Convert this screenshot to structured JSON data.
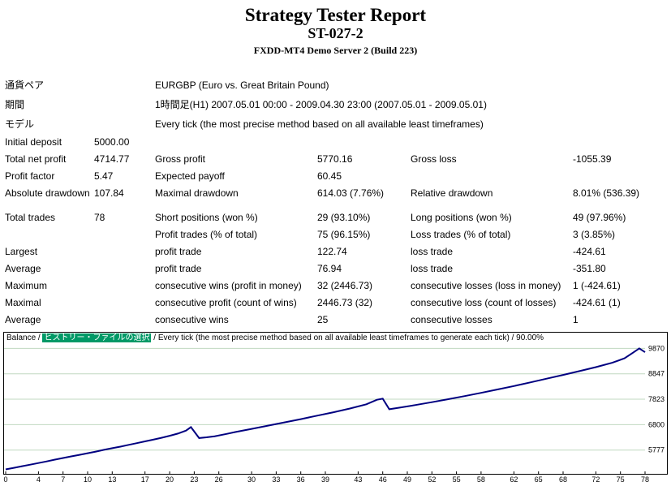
{
  "header": {
    "title": "Strategy Tester Report",
    "subtitle": "ST-027-2",
    "server": "FXDD-MT4 Demo Server 2 (Build 223)"
  },
  "table": {
    "rows": [
      [
        {
          "k": "label",
          "t": "通貨ペア"
        },
        {
          "k": "empty",
          "t": ""
        },
        {
          "k": "wide",
          "s": 4,
          "t": "EURGBP (Euro vs. Great Britain Pound)"
        }
      ],
      [
        {
          "k": "label",
          "t": "期間"
        },
        {
          "k": "empty",
          "t": ""
        },
        {
          "k": "wide",
          "s": 4,
          "t": "1時間足(H1) 2007.05.01 00:00 - 2009.04.30 23:00 (2007.05.01 - 2009.05.01)"
        }
      ],
      [
        {
          "k": "label",
          "t": "モデル"
        },
        {
          "k": "empty",
          "t": ""
        },
        {
          "k": "wide",
          "s": 4,
          "t": "Every tick (the most precise method based on all available least timeframes)"
        }
      ],
      [
        {
          "k": "label",
          "t": "Initial deposit"
        },
        {
          "k": "value",
          "t": "5000.00"
        },
        {
          "k": "empty",
          "s": 4,
          "t": ""
        }
      ],
      [
        {
          "k": "label",
          "t": "Total net profit"
        },
        {
          "k": "value",
          "t": "4714.77"
        },
        {
          "k": "label",
          "t": "Gross profit"
        },
        {
          "k": "value",
          "t": "5770.16"
        },
        {
          "k": "label",
          "t": "Gross loss"
        },
        {
          "k": "value",
          "t": "-1055.39"
        }
      ],
      [
        {
          "k": "label",
          "t": "Profit factor"
        },
        {
          "k": "value",
          "t": "5.47"
        },
        {
          "k": "label",
          "t": "Expected payoff"
        },
        {
          "k": "value",
          "t": "60.45"
        },
        {
          "k": "empty",
          "t": ""
        },
        {
          "k": "empty",
          "t": ""
        }
      ],
      [
        {
          "k": "label",
          "t": "Absolute drawdown"
        },
        {
          "k": "value",
          "t": "107.84"
        },
        {
          "k": "label",
          "t": "Maximal drawdown"
        },
        {
          "k": "value",
          "t": "614.03 (7.76%)"
        },
        {
          "k": "label",
          "t": "Relative drawdown"
        },
        {
          "k": "value",
          "t": "8.01% (536.39)"
        }
      ],
      [],
      [
        {
          "k": "label",
          "t": "Total trades"
        },
        {
          "k": "value",
          "t": "78"
        },
        {
          "k": "label",
          "t": "Short positions (won %)"
        },
        {
          "k": "value",
          "t": "29 (93.10%)"
        },
        {
          "k": "label",
          "t": "Long positions (won %)"
        },
        {
          "k": "value",
          "t": "49 (97.96%)"
        }
      ],
      [
        {
          "k": "empty",
          "t": ""
        },
        {
          "k": "empty",
          "t": ""
        },
        {
          "k": "label",
          "t": "Profit trades (% of total)"
        },
        {
          "k": "value",
          "t": "75 (96.15%)"
        },
        {
          "k": "label",
          "t": "Loss trades (% of total)"
        },
        {
          "k": "value",
          "t": "3 (3.85%)"
        }
      ],
      [
        {
          "k": "rlabel",
          "s": 2,
          "t": "Largest"
        },
        {
          "k": "label",
          "t": "profit trade"
        },
        {
          "k": "value",
          "t": "122.74"
        },
        {
          "k": "label",
          "t": "loss trade"
        },
        {
          "k": "value",
          "t": "-424.61"
        }
      ],
      [
        {
          "k": "rlabel",
          "s": 2,
          "t": "Average"
        },
        {
          "k": "label",
          "t": "profit trade"
        },
        {
          "k": "value",
          "t": "76.94"
        },
        {
          "k": "label",
          "t": "loss trade"
        },
        {
          "k": "value",
          "t": "-351.80"
        }
      ],
      [
        {
          "k": "rlabel",
          "s": 2,
          "t": "Maximum"
        },
        {
          "k": "label",
          "t": "consecutive wins (profit in money)"
        },
        {
          "k": "value",
          "t": "32 (2446.73)"
        },
        {
          "k": "label",
          "t": "consecutive losses (loss in money)"
        },
        {
          "k": "value",
          "t": "1 (-424.61)"
        }
      ],
      [
        {
          "k": "rlabel",
          "s": 2,
          "t": "Maximal"
        },
        {
          "k": "label",
          "t": "consecutive profit (count of wins)"
        },
        {
          "k": "value",
          "t": "2446.73 (32)"
        },
        {
          "k": "label",
          "t": "consecutive loss (count of losses)"
        },
        {
          "k": "value",
          "t": "-424.61 (1)"
        }
      ],
      [
        {
          "k": "rlabel",
          "s": 2,
          "t": "Average"
        },
        {
          "k": "label",
          "t": "consecutive wins"
        },
        {
          "k": "value",
          "t": "25"
        },
        {
          "k": "label",
          "t": "consecutive losses"
        },
        {
          "k": "value",
          "t": "1"
        }
      ]
    ]
  },
  "chart_data": {
    "type": "line",
    "series_name": "Balance",
    "title_segments": [
      {
        "text": "Balance / ",
        "highlight": false
      },
      {
        "text": "ヒストリー・ファイルの選択",
        "highlight": true
      },
      {
        "text": " / Every tick (the most precise method based on all available least timeframes to generate each tick) / 90.00%",
        "highlight": false
      }
    ],
    "line_color": "#000080",
    "grid_color": "#c0d8c0",
    "highlight_color": "#009966",
    "ylim": [
      4950,
      9980
    ],
    "xlim": [
      0,
      78
    ],
    "yticks": [
      9870,
      8847,
      7823,
      6800,
      5777
    ],
    "xticks": [
      0,
      4,
      7,
      10,
      13,
      17,
      20,
      23,
      26,
      30,
      33,
      36,
      39,
      43,
      46,
      49,
      52,
      55,
      58,
      62,
      65,
      68,
      72,
      75,
      78
    ],
    "points": [
      [
        0,
        5000
      ],
      [
        1,
        5060
      ],
      [
        2,
        5125
      ],
      [
        3,
        5190
      ],
      [
        4,
        5255
      ],
      [
        5,
        5320
      ],
      [
        6,
        5390
      ],
      [
        7,
        5455
      ],
      [
        8,
        5520
      ],
      [
        9,
        5585
      ],
      [
        10,
        5650
      ],
      [
        11,
        5715
      ],
      [
        12,
        5785
      ],
      [
        13,
        5850
      ],
      [
        14,
        5915
      ],
      [
        15,
        5985
      ],
      [
        16,
        6055
      ],
      [
        17,
        6125
      ],
      [
        18,
        6195
      ],
      [
        19,
        6270
      ],
      [
        20,
        6350
      ],
      [
        21,
        6440
      ],
      [
        22,
        6560
      ],
      [
        22.6,
        6700
      ],
      [
        23.6,
        6260
      ],
      [
        24.5,
        6290
      ],
      [
        25.5,
        6330
      ],
      [
        27,
        6430
      ],
      [
        28,
        6500
      ],
      [
        30,
        6630
      ],
      [
        32,
        6760
      ],
      [
        34,
        6890
      ],
      [
        36,
        7020
      ],
      [
        38,
        7160
      ],
      [
        40,
        7300
      ],
      [
        42,
        7450
      ],
      [
        44,
        7620
      ],
      [
        45.3,
        7800
      ],
      [
        46,
        7845
      ],
      [
        46.8,
        7420
      ],
      [
        48,
        7480
      ],
      [
        50,
        7590
      ],
      [
        52,
        7705
      ],
      [
        54,
        7825
      ],
      [
        56,
        7950
      ],
      [
        58,
        8080
      ],
      [
        60,
        8215
      ],
      [
        62,
        8355
      ],
      [
        64,
        8500
      ],
      [
        66,
        8650
      ],
      [
        68,
        8800
      ],
      [
        70,
        8955
      ],
      [
        72,
        9115
      ],
      [
        74,
        9290
      ],
      [
        75.5,
        9470
      ],
      [
        76.5,
        9690
      ],
      [
        77.3,
        9870
      ],
      [
        78,
        9714.77
      ]
    ]
  }
}
